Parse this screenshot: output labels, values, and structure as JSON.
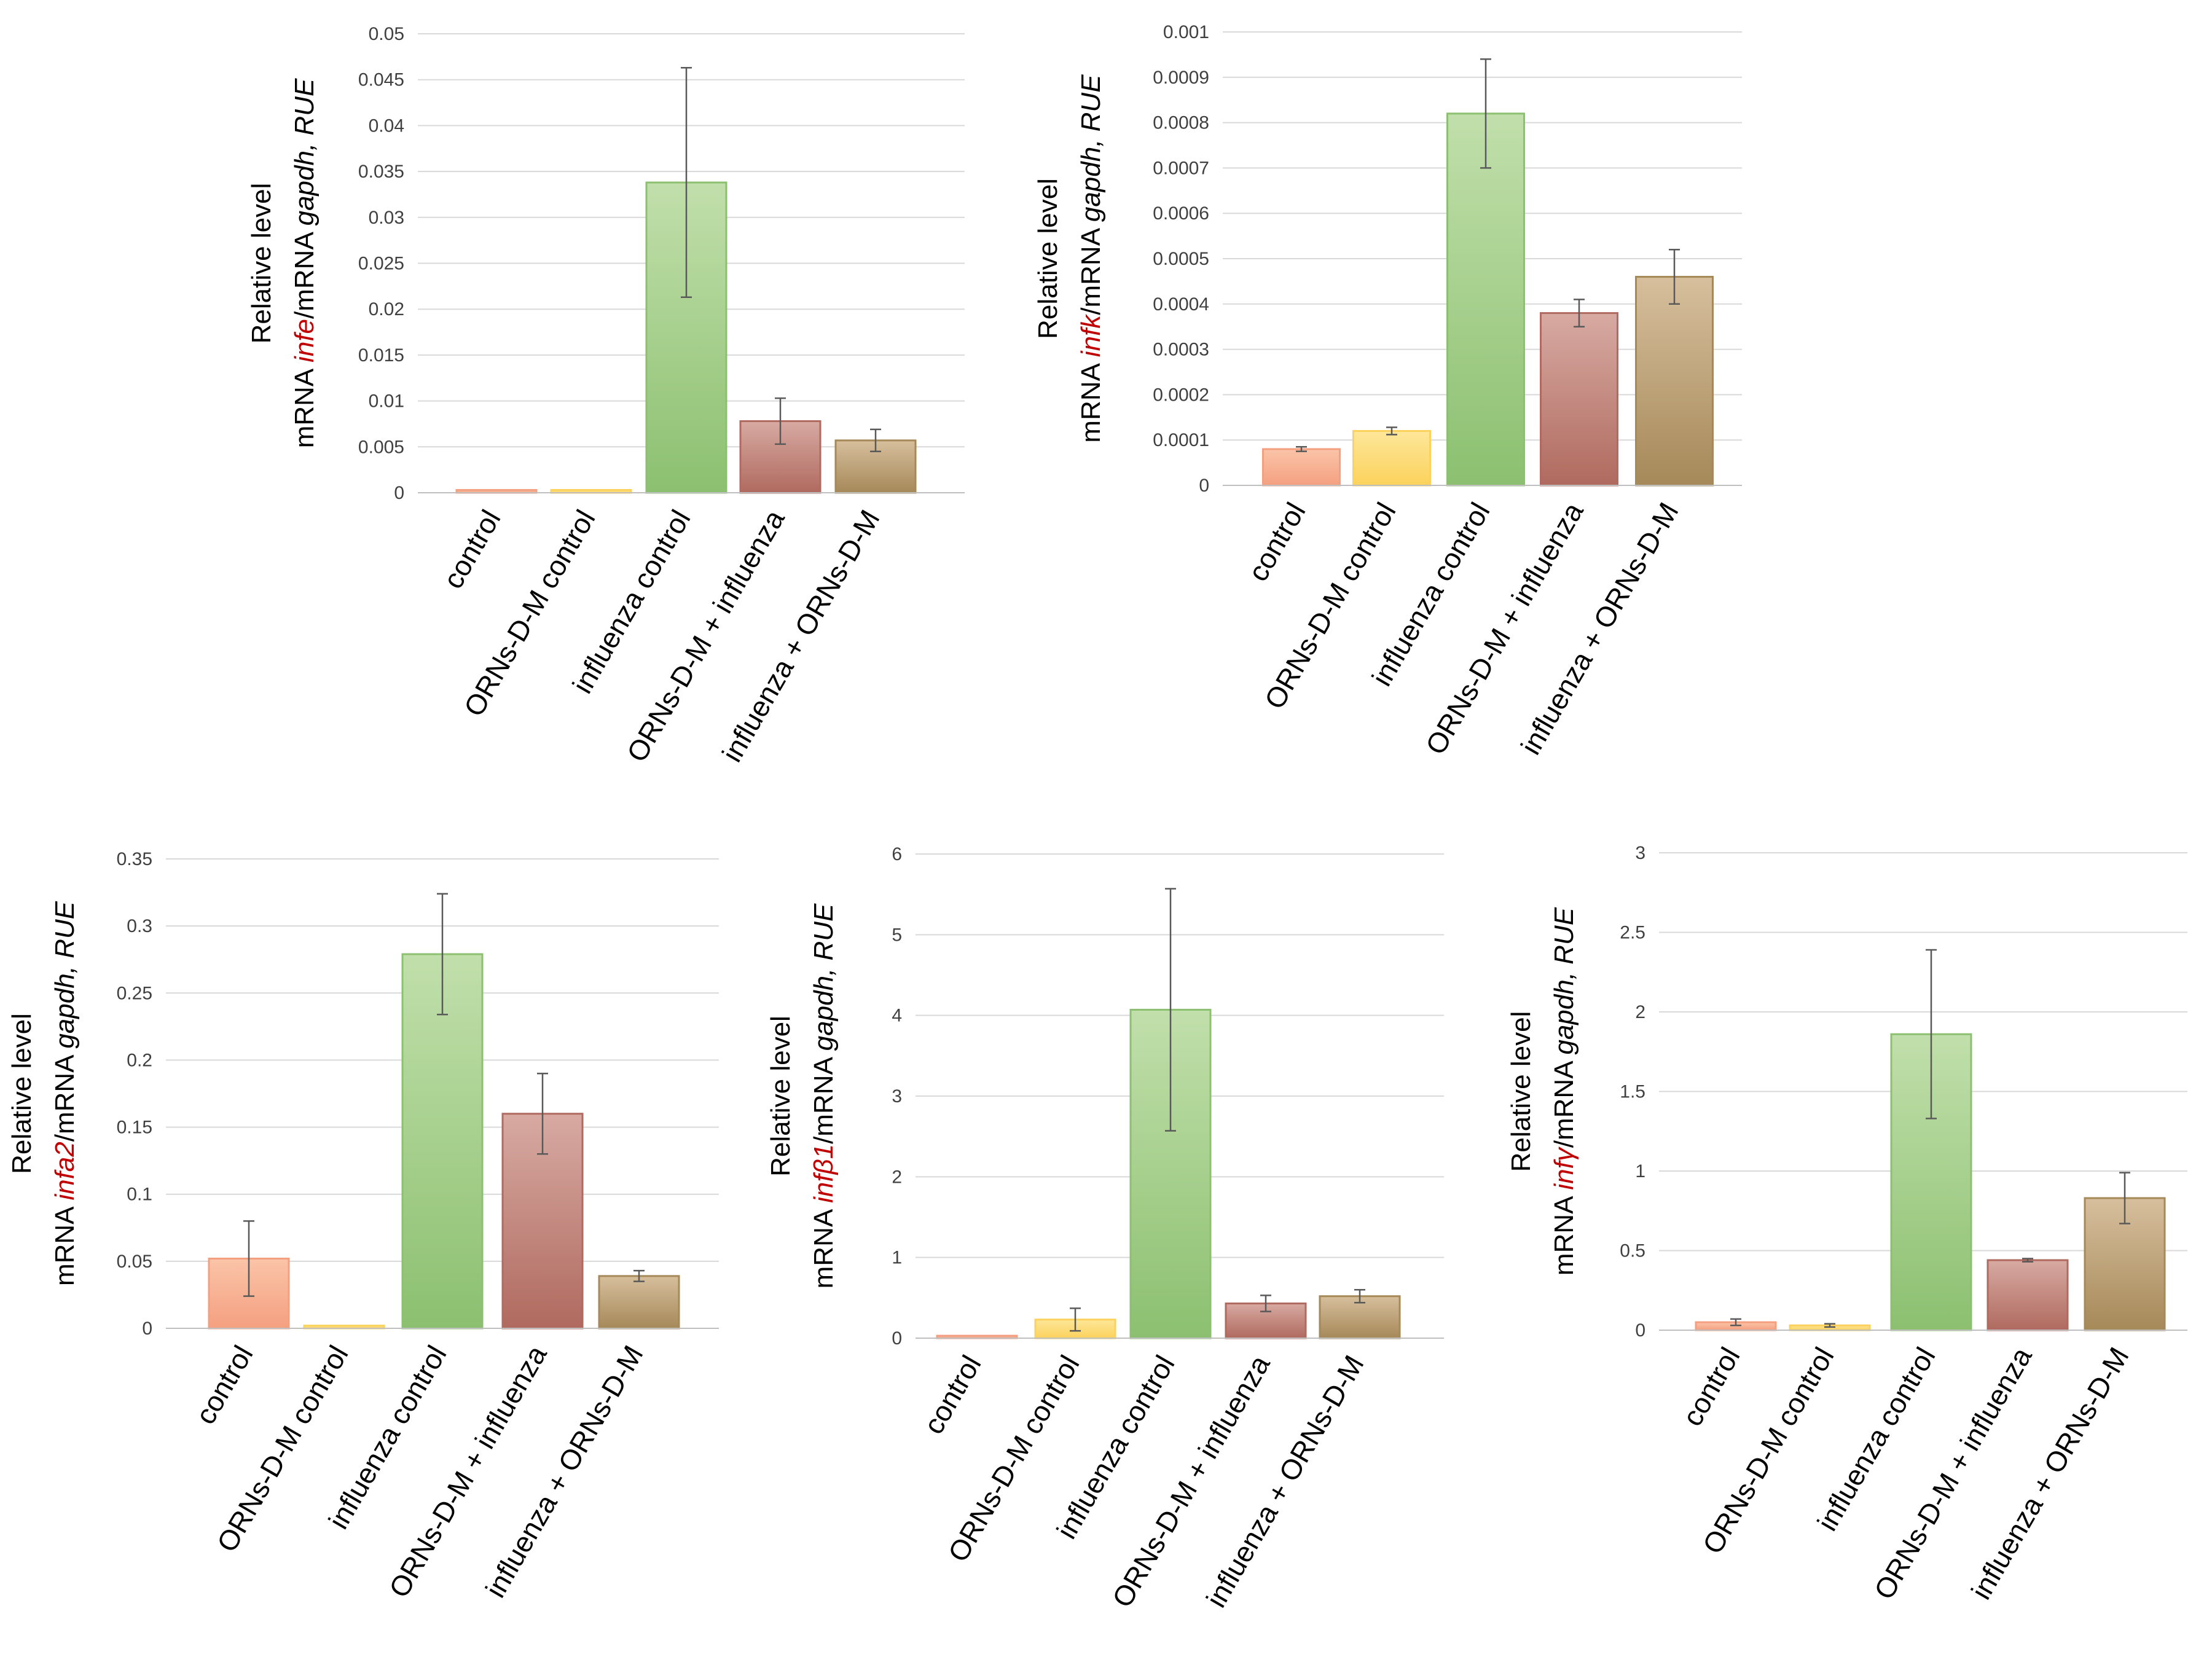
{
  "chart_data": [
    {
      "type": "bar",
      "title": "",
      "gene": "infe",
      "ylabel_line1": "Relative level",
      "ylabel_line2_prefix": "mRNA ",
      "ylabel_line2_mid": "/mRNA ",
      "ylabel_ref_gene": "gapdh,",
      "ylabel_unit": " RUE",
      "categories": [
        "control",
        "ORNs-D-M control",
        "influenza control",
        "ORNs-D-M + influenza",
        "influenza + ORNs-D-M"
      ],
      "values": [
        0.0003,
        0.0003,
        0.0338,
        0.0078,
        0.0057
      ],
      "errors": [
        0,
        0,
        0.0125,
        0.0025,
        0.0012
      ],
      "ylim": [
        0,
        0.05
      ],
      "yticks": [
        "0",
        "0.005",
        "0.01",
        "0.015",
        "0.02",
        "0.025",
        "0.03",
        "0.035",
        "0.04",
        "0.045",
        "0.05"
      ],
      "ytick_values": [
        0,
        0.005,
        0.01,
        0.015,
        0.02,
        0.025,
        0.03,
        0.035,
        0.04,
        0.045,
        0.05
      ]
    },
    {
      "type": "bar",
      "title": "",
      "gene": "infk",
      "ylabel_line1": "Relative level",
      "ylabel_line2_prefix": "mRNA ",
      "ylabel_line2_mid": "/mRNA ",
      "ylabel_ref_gene": "gapdh,",
      "ylabel_unit": " RUE",
      "categories": [
        "control",
        "ORNs-D-M control",
        "influenza control",
        "ORNs-D-M + influenza",
        "influenza + ORNs-D-M"
      ],
      "values": [
        8e-05,
        0.00012,
        0.00082,
        0.00038,
        0.00046
      ],
      "errors": [
        5e-06,
        8e-06,
        0.00012,
        3e-05,
        6e-05
      ],
      "ylim": [
        0,
        0.001
      ],
      "yticks": [
        "0",
        "0.0001",
        "0.0002",
        "0.0003",
        "0.0004",
        "0.0005",
        "0.0006",
        "0.0007",
        "0.0008",
        "0.0009",
        "0.001"
      ],
      "ytick_values": [
        0,
        0.0001,
        0.0002,
        0.0003,
        0.0004,
        0.0005,
        0.0006,
        0.0007,
        0.0008,
        0.0009,
        0.001
      ]
    },
    {
      "type": "bar",
      "title": "",
      "gene": "infa2",
      "ylabel_line1": "Relative level",
      "ylabel_line2_prefix": "mRNA ",
      "ylabel_line2_mid": "/mRNA ",
      "ylabel_ref_gene": "gapdh,",
      "ylabel_unit": " RUE",
      "categories": [
        "control",
        "ORNs-D-M control",
        "influenza control",
        "ORNs-D-M + influenza",
        "influenza + ORNs-D-M"
      ],
      "values": [
        0.052,
        0.002,
        0.279,
        0.16,
        0.039
      ],
      "errors": [
        0.028,
        0,
        0.045,
        0.03,
        0.004
      ],
      "ylim": [
        0,
        0.35
      ],
      "yticks": [
        "0",
        "0.05",
        "0.1",
        "0.15",
        "0.2",
        "0.25",
        "0.3",
        "0.35"
      ],
      "ytick_values": [
        0,
        0.05,
        0.1,
        0.15,
        0.2,
        0.25,
        0.3,
        0.35
      ]
    },
    {
      "type": "bar",
      "title": "",
      "gene": "infβ1",
      "ylabel_line1": "Relative level",
      "ylabel_line2_prefix": "mRNA ",
      "ylabel_line2_mid": "/mRNA ",
      "ylabel_ref_gene": "gapdh,",
      "ylabel_unit": " RUE",
      "categories": [
        "control",
        "ORNs-D-M control",
        "influenza control",
        "ORNs-D-M + influenza",
        "influenza + ORNs-D-M"
      ],
      "values": [
        0.03,
        0.23,
        4.07,
        0.43,
        0.52
      ],
      "errors": [
        0,
        0.14,
        1.5,
        0.1,
        0.08
      ],
      "ylim": [
        0,
        6
      ],
      "yticks": [
        "0",
        "1",
        "2",
        "3",
        "4",
        "5",
        "6"
      ],
      "ytick_values": [
        0,
        1,
        2,
        3,
        4,
        5,
        6
      ]
    },
    {
      "type": "bar",
      "title": "",
      "gene": "infγ",
      "ylabel_line1": "Relative level",
      "ylabel_line2_prefix": "mRNA ",
      "ylabel_line2_mid": "/mRNA ",
      "ylabel_ref_gene": "gapdh,",
      "ylabel_unit": " RUE",
      "categories": [
        "control",
        "ORNs-D-M control",
        "influenza control",
        "ORNs-D-M + influenza",
        "influenza + ORNs-D-M"
      ],
      "values": [
        0.05,
        0.03,
        1.86,
        0.44,
        0.83
      ],
      "errors": [
        0.02,
        0.01,
        0.53,
        0.01,
        0.16
      ],
      "ylim": [
        0,
        3
      ],
      "yticks": [
        "0",
        "0.5",
        "1",
        "1.5",
        "2",
        "2.5",
        "3"
      ],
      "ytick_values": [
        0,
        0.5,
        1,
        1.5,
        2,
        2.5,
        3
      ]
    }
  ],
  "colors": {
    "control": [
      "#fbc4a8",
      "#f4a080"
    ],
    "ornsdm_control": [
      "#fde79a",
      "#fcd25c"
    ],
    "influenza_control": [
      "#c1dfab",
      "#8cc070"
    ],
    "ornsdm_influenza": [
      "#d7aaa2",
      "#b06a5f"
    ],
    "influenza_ornsdm": [
      "#d7bf9d",
      "#a68959"
    ],
    "gene_label": "#c00000"
  }
}
